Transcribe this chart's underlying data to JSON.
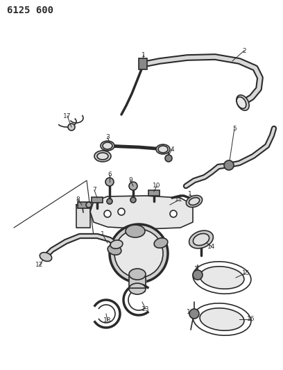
{
  "title": "6125 600",
  "bg_color": "#ffffff",
  "line_color": "#2a2a2a",
  "figsize": [
    4.08,
    5.33
  ],
  "dpi": 100,
  "gray_bg": "#f0f0f0",
  "label_fs": 6.5,
  "hose_lw": 5.0,
  "thin_lw": 1.2,
  "med_lw": 2.5
}
